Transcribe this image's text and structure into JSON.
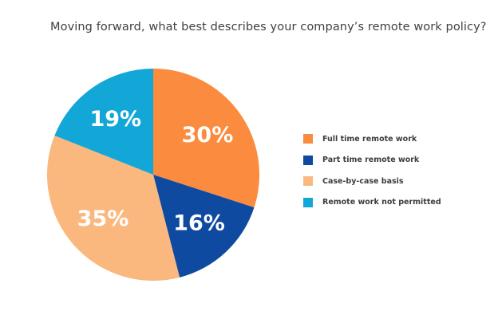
{
  "title": "Moving forward, what best describes your company’s remote work policy?",
  "chart_data": {
    "type": "pie",
    "title": "Moving forward, what best describes your company’s remote work policy?",
    "slices": [
      {
        "label": "Full time remote work",
        "value": 30,
        "display": "30%",
        "color": "#FA8B3F"
      },
      {
        "label": "Part time remote work",
        "value": 16,
        "display": "16%",
        "color": "#0E4AA0"
      },
      {
        "label": "Case-by-case basis",
        "value": 35,
        "display": "35%",
        "color": "#FBB87E"
      },
      {
        "label": "Remote work not permitted",
        "value": 19,
        "display": "19%",
        "color": "#13A7D8"
      }
    ],
    "start_angle": "top",
    "direction": "clockwise",
    "legend_position": "right"
  }
}
